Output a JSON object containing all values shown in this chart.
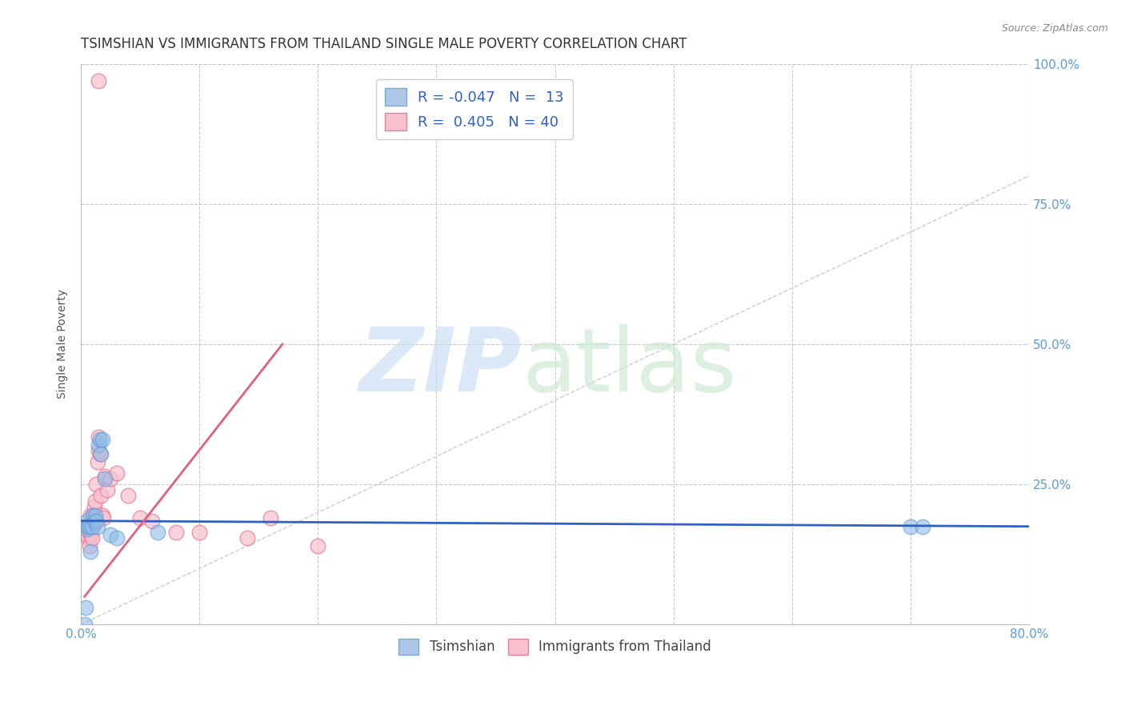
{
  "title": "TSIMSHIAN VS IMMIGRANTS FROM THAILAND SINGLE MALE POVERTY CORRELATION CHART",
  "source": "Source: ZipAtlas.com",
  "xlim": [
    0.0,
    0.8
  ],
  "ylim": [
    0.0,
    1.0
  ],
  "xlabel_ticks": [
    0.0,
    0.1,
    0.2,
    0.3,
    0.4,
    0.5,
    0.6,
    0.7,
    0.8
  ],
  "ylabel_ticks": [
    0.0,
    0.25,
    0.5,
    0.75,
    1.0
  ],
  "right_ylabel_labels": [
    "",
    "25.0%",
    "50.0%",
    "75.0%",
    "100.0%"
  ],
  "tsimshian_x": [
    0.003,
    0.004,
    0.005,
    0.005,
    0.006,
    0.007,
    0.008,
    0.009,
    0.01,
    0.011,
    0.012,
    0.013,
    0.014,
    0.015,
    0.016,
    0.017,
    0.018,
    0.02,
    0.025,
    0.03,
    0.065,
    0.7,
    0.71
  ],
  "tsimshian_y": [
    0.0,
    0.03,
    0.17,
    0.185,
    0.175,
    0.175,
    0.13,
    0.175,
    0.195,
    0.185,
    0.195,
    0.185,
    0.175,
    0.32,
    0.33,
    0.305,
    0.33,
    0.26,
    0.16,
    0.155,
    0.165,
    0.175,
    0.175
  ],
  "thailand_x": [
    0.003,
    0.004,
    0.004,
    0.005,
    0.005,
    0.006,
    0.006,
    0.007,
    0.007,
    0.008,
    0.008,
    0.009,
    0.009,
    0.01,
    0.01,
    0.011,
    0.011,
    0.012,
    0.013,
    0.014,
    0.015,
    0.015,
    0.016,
    0.017,
    0.018,
    0.019,
    0.02,
    0.022,
    0.025,
    0.03,
    0.04,
    0.05,
    0.06,
    0.08,
    0.1,
    0.14,
    0.16,
    0.2,
    0.015
  ],
  "thailand_y": [
    0.175,
    0.16,
    0.175,
    0.16,
    0.175,
    0.155,
    0.175,
    0.14,
    0.175,
    0.16,
    0.195,
    0.155,
    0.175,
    0.175,
    0.195,
    0.19,
    0.21,
    0.22,
    0.25,
    0.29,
    0.31,
    0.335,
    0.305,
    0.23,
    0.195,
    0.19,
    0.265,
    0.24,
    0.26,
    0.27,
    0.23,
    0.19,
    0.185,
    0.165,
    0.165,
    0.155,
    0.19,
    0.14,
    0.97
  ],
  "blue_line_x": [
    0.0,
    0.8
  ],
  "blue_line_y": [
    0.185,
    0.175
  ],
  "pink_line_x": [
    0.003,
    0.17
  ],
  "pink_line_y": [
    0.05,
    0.5
  ],
  "diagonal_line_x": [
    0.0,
    0.8
  ],
  "diagonal_line_y": [
    0.0,
    0.8
  ],
  "blue_color": "#90bce8",
  "blue_edge_color": "#5b9bd5",
  "pink_color": "#f8c0cc",
  "pink_edge_color": "#e87090",
  "blue_line_color": "#3060c0",
  "pink_line_color": "#e06080",
  "grid_color": "#c8c8c8",
  "background_color": "#ffffff",
  "ylabel": "Single Male Poverty",
  "title_fontsize": 12,
  "legend_R_color": "#3060c0",
  "legend_N_color": "#3060c0"
}
